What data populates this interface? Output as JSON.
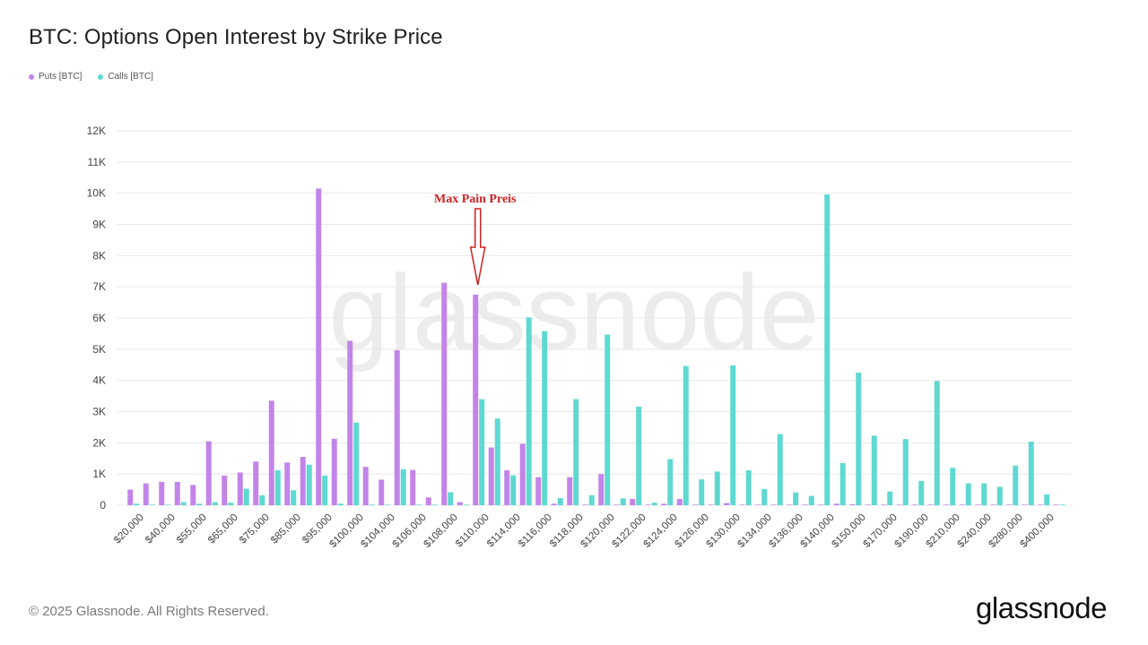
{
  "header": {
    "title": "BTC: Options Open Interest by Strike Price"
  },
  "footer": {
    "copyright": "© 2025 Glassnode. All Rights Reserved.",
    "brand": "glassnode"
  },
  "watermark": "glassnode",
  "colors": {
    "puts": "#c384e8",
    "calls": "#5ed9d1",
    "annotation": "#cc2222",
    "grid": "#e8e8e8"
  },
  "chart_data": {
    "type": "bar",
    "title": "BTC: Options Open Interest by Strike Price",
    "xlabel": "",
    "ylabel": "",
    "ylim": [
      0,
      12000
    ],
    "y_ticks": [
      "0",
      "1K",
      "2K",
      "3K",
      "4K",
      "5K",
      "6K",
      "7K",
      "8K",
      "9K",
      "10K",
      "11K",
      "12K"
    ],
    "grid": true,
    "legend_position": "top-left",
    "x_tick_labels": [
      "$20,000",
      "$40,000",
      "$55,000",
      "$65,000",
      "$75,000",
      "$85,000",
      "$95,000",
      "$100,000",
      "$104,000",
      "$106,000",
      "$108,000",
      "$110,000",
      "$114,000",
      "$116,000",
      "$118,000",
      "$120,000",
      "$122,000",
      "$124,000",
      "$126,000",
      "$130,000",
      "$134,000",
      "$136,000",
      "$140,000",
      "$150,000",
      "$170,000",
      "$190,000",
      "$210,000",
      "$240,000",
      "$280,000",
      "$400,000"
    ],
    "category_count": 60,
    "series": [
      {
        "name": "Puts [BTC]",
        "values": [
          500,
          700,
          750,
          750,
          650,
          2050,
          950,
          1050,
          1400,
          3350,
          1370,
          1550,
          10150,
          2130,
          5270,
          1230,
          820,
          4970,
          1130,
          250,
          7130,
          100,
          6750,
          1850,
          1120,
          1970,
          900,
          50,
          900,
          20,
          1000,
          20,
          200,
          20,
          50,
          200,
          20,
          20,
          70,
          20,
          20,
          20,
          20,
          20,
          20,
          50,
          30,
          20,
          20,
          20,
          20,
          20,
          20,
          20,
          20,
          20,
          20,
          20,
          20,
          20
        ]
      },
      {
        "name": "Calls [BTC]",
        "values": [
          50,
          20,
          20,
          100,
          50,
          100,
          80,
          530,
          320,
          1120,
          480,
          1300,
          950,
          50,
          2650,
          20,
          20,
          1150,
          20,
          20,
          420,
          20,
          3400,
          2780,
          960,
          6020,
          5580,
          230,
          3400,
          320,
          5470,
          220,
          3160,
          80,
          1480,
          4460,
          830,
          1080,
          4480,
          1120,
          520,
          2280,
          410,
          300,
          9960,
          1350,
          4250,
          2230,
          440,
          2120,
          780,
          3980,
          1200,
          700,
          700,
          590,
          1270,
          2040,
          350,
          20
        ]
      }
    ],
    "annotations": [
      {
        "text": "Max Pain Preis",
        "strike": "$110,000"
      }
    ]
  }
}
